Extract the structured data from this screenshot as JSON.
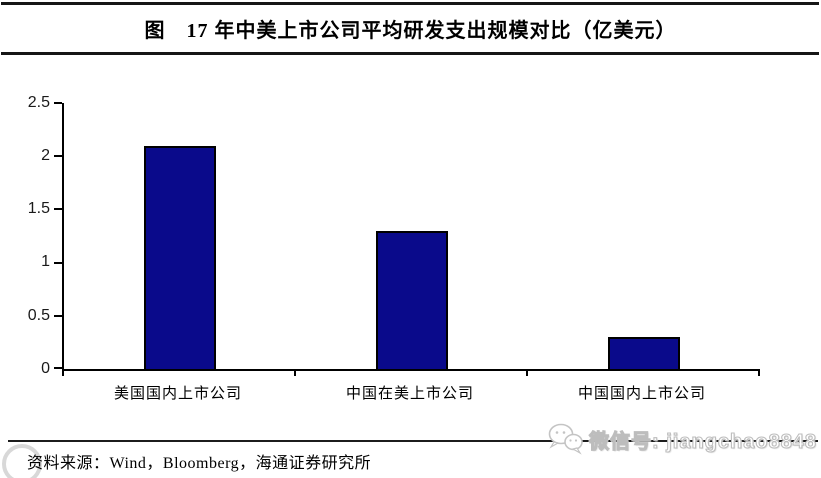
{
  "title": "图　17 年中美上市公司平均研发支出规模对比（亿美元）",
  "chart_data": {
    "type": "bar",
    "title": "17 年中美上市公司平均研发支出规模对比（亿美元）",
    "categories": [
      "美国国内上市公司",
      "中国在美上市公司",
      "中国国内上市公司"
    ],
    "values": [
      2.1,
      1.3,
      0.3
    ],
    "xlabel": "",
    "ylabel": "",
    "ylim": [
      0,
      2.5
    ],
    "yticks": [
      "2.5",
      "2",
      "1.5",
      "1",
      "0.5",
      "0"
    ],
    "grid": false,
    "legend": null,
    "bar_color": "#0a0a8b",
    "bar_border_color": "#000000"
  },
  "source": {
    "label": "资料来源：Wind，Bloomberg，海通证券研究所"
  },
  "watermark": {
    "wechat_text": "微信号: jiangchao8848",
    "icons": [
      "wechat-icon",
      "ring-logo-icon"
    ]
  },
  "colors": {
    "background": "#ffffff",
    "rule": "#161616",
    "axis": "#000000",
    "text": "#000000",
    "watermark_gray": "#bdbdbd"
  }
}
